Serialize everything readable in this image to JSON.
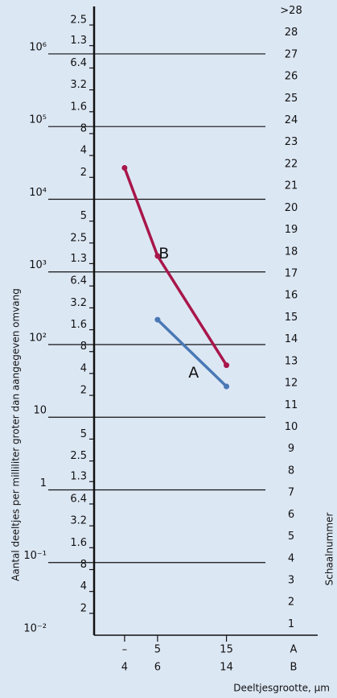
{
  "chart_data": {
    "type": "line",
    "y_label": "Aantal deeltjes per milliliter groter dan aangegeven omvang",
    "y2_label": "Schaalnummer",
    "x_label": "Deeltjesgrootte, µm",
    "x": [
      4,
      6,
      14
    ],
    "x_labels_a": [
      "–",
      5,
      15
    ],
    "row_names": [
      "A",
      "B"
    ],
    "xscale": "log",
    "xlim": [
      2.75,
      22.6
    ],
    "yscale": "log",
    "ylim": [
      0.01,
      4500000
    ],
    "yticks": [
      {
        "value": 2500000,
        "label": "2.5"
      },
      {
        "value": 1300000,
        "label": "1.3"
      },
      {
        "value": 1000000,
        "label": "10⁶"
      },
      {
        "value": 640000,
        "label": "6.4"
      },
      {
        "value": 320000,
        "label": "3.2"
      },
      {
        "value": 160000,
        "label": "1.6"
      },
      {
        "value": 100000,
        "label": "10⁵"
      },
      {
        "value": 80000,
        "label": "8"
      },
      {
        "value": 40000,
        "label": "4"
      },
      {
        "value": 20000,
        "label": "2"
      },
      {
        "value": 10000,
        "label": "10⁴"
      },
      {
        "value": 5000,
        "label": "5"
      },
      {
        "value": 2500,
        "label": "2.5"
      },
      {
        "value": 1300,
        "label": "1.3"
      },
      {
        "value": 1000,
        "label": "10³"
      },
      {
        "value": 640,
        "label": "6.4"
      },
      {
        "value": 320,
        "label": "3.2"
      },
      {
        "value": 160,
        "label": "1.6"
      },
      {
        "value": 100,
        "label": "10²"
      },
      {
        "value": 80,
        "label": "8"
      },
      {
        "value": 40,
        "label": "4"
      },
      {
        "value": 20,
        "label": "2"
      },
      10,
      5,
      2.5,
      1.3,
      1,
      {
        "value": 0.64,
        "label": "6.4"
      },
      {
        "value": 0.32,
        "label": "3.2"
      },
      {
        "value": 0.16,
        "label": "1.6"
      },
      {
        "value": 0.1,
        "label": "10⁻¹"
      },
      {
        "value": 0.08,
        "label": "8"
      },
      {
        "value": 0.04,
        "label": "4"
      },
      {
        "value": 0.02,
        "label": "2"
      },
      {
        "value": 0.01,
        "label": "10⁻²"
      }
    ],
    "y2lim": [
      0.5,
      29.2
    ],
    "y2ticks": [
      1,
      2,
      3,
      4,
      5,
      6,
      7,
      8,
      9,
      10,
      11,
      12,
      13,
      14,
      15,
      16,
      17,
      18,
      19,
      20,
      21,
      22,
      23,
      24,
      25,
      26,
      27,
      28,
      {
        "value": 29,
        "label": ">28"
      }
    ],
    "series": [
      {
        "name": "A",
        "color": "#4a78b5",
        "values": [
          null,
          220,
          26.5
        ]
      },
      {
        "name": "B",
        "color": "#a8174a",
        "values": [
          27000,
          1660,
          52
        ]
      }
    ]
  }
}
